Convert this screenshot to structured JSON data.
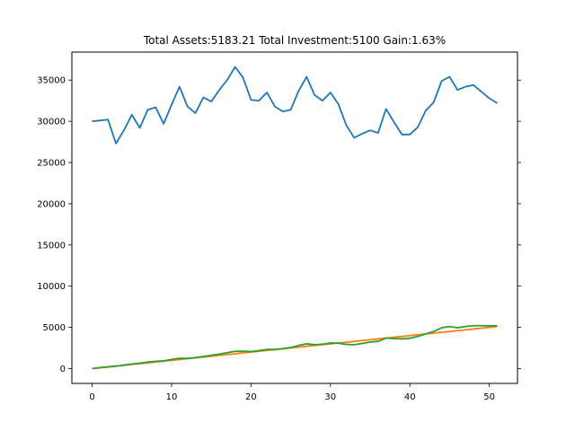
{
  "chart_data": {
    "type": "line",
    "title": "Total Assets:5183.21  Total Investment:5100  Gain:1.63%",
    "xlabel": "",
    "ylabel": "",
    "xlim": [
      -2.55,
      53.55
    ],
    "ylim": [
      -1800,
      38400
    ],
    "x_ticks": [
      0,
      10,
      20,
      30,
      40,
      50
    ],
    "y_ticks": [
      0,
      5000,
      10000,
      15000,
      20000,
      25000,
      30000,
      35000
    ],
    "grid": false,
    "legend": "none",
    "x": [
      0,
      1,
      2,
      3,
      4,
      5,
      6,
      7,
      8,
      9,
      10,
      11,
      12,
      13,
      14,
      15,
      16,
      17,
      18,
      19,
      20,
      21,
      22,
      23,
      24,
      25,
      26,
      27,
      28,
      29,
      30,
      31,
      32,
      33,
      34,
      35,
      36,
      37,
      38,
      39,
      40,
      41,
      42,
      43,
      44,
      45,
      46,
      47,
      48,
      49,
      50,
      51
    ],
    "series": [
      {
        "color": "#1f77b4",
        "values": [
          30000,
          30100,
          30200,
          27300,
          28900,
          30800,
          29200,
          31400,
          31700,
          29700,
          32000,
          34200,
          31800,
          31000,
          32900,
          32400,
          33800,
          35000,
          36600,
          35300,
          32600,
          32500,
          33500,
          31800,
          31200,
          31400,
          33700,
          35400,
          33200,
          32500,
          33500,
          32100,
          29500,
          28000,
          28500,
          28900,
          28600,
          31500,
          29900,
          28400,
          28400,
          29300,
          31300,
          32300,
          34900,
          35400,
          33800,
          34200,
          34400,
          33600,
          32800,
          32200
        ]
      },
      {
        "color": "#ff7f0e",
        "values": [
          0,
          100,
          200,
          300,
          400,
          500,
          600,
          700,
          800,
          900,
          1000,
          1100,
          1200,
          1300,
          1400,
          1500,
          1600,
          1700,
          1800,
          1900,
          2000,
          2100,
          2200,
          2300,
          2400,
          2500,
          2600,
          2700,
          2800,
          2900,
          3000,
          3100,
          3200,
          3300,
          3400,
          3500,
          3600,
          3700,
          3800,
          3900,
          4000,
          4100,
          4200,
          4300,
          4400,
          4500,
          4600,
          4700,
          4800,
          4900,
          5000,
          5100
        ]
      },
      {
        "color": "#2ca02c",
        "values": [
          0,
          120,
          210,
          300,
          420,
          560,
          650,
          780,
          880,
          940,
          1100,
          1250,
          1230,
          1330,
          1470,
          1600,
          1750,
          1930,
          2100,
          2100,
          2060,
          2180,
          2330,
          2330,
          2420,
          2550,
          2800,
          3000,
          2900,
          2950,
          3100,
          3080,
          2930,
          2900,
          3050,
          3220,
          3300,
          3700,
          3650,
          3600,
          3680,
          3900,
          4200,
          4500,
          4950,
          5100,
          4950,
          5100,
          5200,
          5200,
          5180,
          5183
        ]
      }
    ]
  }
}
